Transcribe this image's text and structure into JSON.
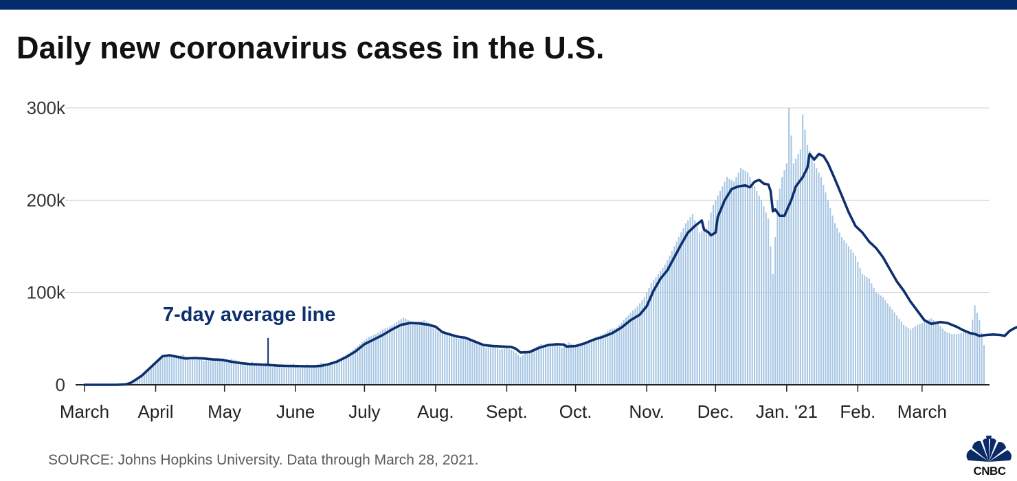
{
  "colors": {
    "top_bar": "#012b6b",
    "line": "#0d2f6e",
    "bars": "#a7c6e3",
    "grid": "#d0d0d0",
    "axis": "#222222",
    "annotation": "#0d2f6e"
  },
  "header": {
    "title": "Daily new coronavirus cases in the U.S."
  },
  "footer": {
    "source": "SOURCE: Johns Hopkins University. Data through March 28, 2021."
  },
  "logo": {
    "text": "CNBC",
    "icon": "nbc-peacock-icon"
  },
  "chart_data": {
    "type": "bar",
    "title": "Daily new coronavirus cases in the U.S.",
    "xlabel": "",
    "ylabel": "",
    "ylim": [
      0,
      300000
    ],
    "yticks": [
      {
        "value": 0,
        "label": "0"
      },
      {
        "value": 100000,
        "label": "100k"
      },
      {
        "value": 200000,
        "label": "200k"
      },
      {
        "value": 300000,
        "label": "300k"
      }
    ],
    "xticks": [
      {
        "day": 0,
        "label": "March"
      },
      {
        "day": 31,
        "label": "April"
      },
      {
        "day": 61,
        "label": "May"
      },
      {
        "day": 92,
        "label": "June"
      },
      {
        "day": 122,
        "label": "July"
      },
      {
        "day": 153,
        "label": "Aug."
      },
      {
        "day": 184,
        "label": "Sept."
      },
      {
        "day": 214,
        "label": "Oct."
      },
      {
        "day": 245,
        "label": "Nov."
      },
      {
        "day": 275,
        "label": "Dec."
      },
      {
        "day": 306,
        "label": "Jan. '21"
      },
      {
        "day": 337,
        "label": "Feb."
      },
      {
        "day": 365,
        "label": "March"
      }
    ],
    "x_range_days": [
      0,
      392
    ],
    "annotation": {
      "text": "7-day average line",
      "day": 80,
      "value": 21000
    },
    "series": [
      {
        "name": "Daily new cases",
        "kind": "bars",
        "points": [
          [
            0,
            0
          ],
          [
            10,
            100
          ],
          [
            18,
            400
          ],
          [
            20,
            1500
          ],
          [
            22,
            3000
          ],
          [
            25,
            9000
          ],
          [
            28,
            18000
          ],
          [
            31,
            26000
          ],
          [
            34,
            31000
          ],
          [
            37,
            32000
          ],
          [
            40,
            30000
          ],
          [
            43,
            33000
          ],
          [
            46,
            27000
          ],
          [
            49,
            30000
          ],
          [
            52,
            26000
          ],
          [
            55,
            28000
          ],
          [
            58,
            29000
          ],
          [
            61,
            25000
          ],
          [
            64,
            28000
          ],
          [
            67,
            26000
          ],
          [
            70,
            21000
          ],
          [
            73,
            25000
          ],
          [
            76,
            20000
          ],
          [
            79,
            24000
          ],
          [
            82,
            19000
          ],
          [
            85,
            22000
          ],
          [
            88,
            20000
          ],
          [
            91,
            23000
          ],
          [
            94,
            18000
          ],
          [
            97,
            22000
          ],
          [
            100,
            19000
          ],
          [
            103,
            24000
          ],
          [
            106,
            22000
          ],
          [
            109,
            26000
          ],
          [
            112,
            30000
          ],
          [
            115,
            34000
          ],
          [
            118,
            40000
          ],
          [
            121,
            46000
          ],
          [
            124,
            52000
          ],
          [
            127,
            55000
          ],
          [
            130,
            60000
          ],
          [
            133,
            63000
          ],
          [
            136,
            68000
          ],
          [
            139,
            73000
          ],
          [
            142,
            69000
          ],
          [
            145,
            67000
          ],
          [
            148,
            70000
          ],
          [
            151,
            66000
          ],
          [
            154,
            58000
          ],
          [
            157,
            55000
          ],
          [
            160,
            55000
          ],
          [
            163,
            50000
          ],
          [
            166,
            52000
          ],
          [
            169,
            47000
          ],
          [
            172,
            44000
          ],
          [
            175,
            40000
          ],
          [
            178,
            43000
          ],
          [
            181,
            38000
          ],
          [
            184,
            40000
          ],
          [
            187,
            37000
          ],
          [
            190,
            30000
          ],
          [
            193,
            36000
          ],
          [
            196,
            40000
          ],
          [
            199,
            44000
          ],
          [
            202,
            42000
          ],
          [
            205,
            45000
          ],
          [
            208,
            40000
          ],
          [
            211,
            46000
          ],
          [
            214,
            42000
          ],
          [
            217,
            45000
          ],
          [
            220,
            48000
          ],
          [
            223,
            52000
          ],
          [
            226,
            55000
          ],
          [
            229,
            60000
          ],
          [
            232,
            62000
          ],
          [
            235,
            70000
          ],
          [
            238,
            78000
          ],
          [
            241,
            85000
          ],
          [
            244,
            95000
          ],
          [
            247,
            110000
          ],
          [
            250,
            120000
          ],
          [
            253,
            130000
          ],
          [
            256,
            145000
          ],
          [
            259,
            160000
          ],
          [
            262,
            175000
          ],
          [
            265,
            185000
          ],
          [
            268,
            165000
          ],
          [
            271,
            170000
          ],
          [
            274,
            195000
          ],
          [
            277,
            210000
          ],
          [
            280,
            225000
          ],
          [
            283,
            220000
          ],
          [
            286,
            235000
          ],
          [
            289,
            230000
          ],
          [
            292,
            215000
          ],
          [
            295,
            200000
          ],
          [
            298,
            180000
          ],
          [
            300,
            120000
          ],
          [
            302,
            200000
          ],
          [
            304,
            225000
          ],
          [
            306,
            240000
          ],
          [
            307,
            300000
          ],
          [
            309,
            240000
          ],
          [
            312,
            255000
          ],
          [
            313,
            293000
          ],
          [
            315,
            260000
          ],
          [
            318,
            240000
          ],
          [
            321,
            225000
          ],
          [
            324,
            200000
          ],
          [
            327,
            175000
          ],
          [
            330,
            160000
          ],
          [
            333,
            150000
          ],
          [
            336,
            140000
          ],
          [
            339,
            120000
          ],
          [
            342,
            115000
          ],
          [
            345,
            100000
          ],
          [
            348,
            95000
          ],
          [
            351,
            85000
          ],
          [
            354,
            75000
          ],
          [
            357,
            65000
          ],
          [
            360,
            60000
          ],
          [
            363,
            65000
          ],
          [
            366,
            68000
          ],
          [
            369,
            72000
          ],
          [
            372,
            66000
          ],
          [
            375,
            58000
          ],
          [
            378,
            55000
          ],
          [
            381,
            55000
          ],
          [
            384,
            58000
          ],
          [
            386,
            55000
          ],
          [
            388,
            86000
          ],
          [
            390,
            70000
          ],
          [
            392,
            43000
          ]
        ]
      },
      {
        "name": "7-day average",
        "kind": "line",
        "points": [
          [
            0,
            0
          ],
          [
            14,
            0
          ],
          [
            18,
            500
          ],
          [
            20,
            2000
          ],
          [
            22,
            5000
          ],
          [
            25,
            10000
          ],
          [
            28,
            17000
          ],
          [
            31,
            24000
          ],
          [
            34,
            31000
          ],
          [
            37,
            32000
          ],
          [
            40,
            30500
          ],
          [
            44,
            28500
          ],
          [
            48,
            29000
          ],
          [
            52,
            28500
          ],
          [
            56,
            27500
          ],
          [
            60,
            27000
          ],
          [
            64,
            25000
          ],
          [
            68,
            23500
          ],
          [
            72,
            22500
          ],
          [
            76,
            22000
          ],
          [
            80,
            21500
          ],
          [
            84,
            20800
          ],
          [
            88,
            20500
          ],
          [
            92,
            20300
          ],
          [
            96,
            20100
          ],
          [
            100,
            20000
          ],
          [
            103,
            20500
          ],
          [
            106,
            22000
          ],
          [
            110,
            25000
          ],
          [
            114,
            30000
          ],
          [
            118,
            36000
          ],
          [
            122,
            44000
          ],
          [
            126,
            49000
          ],
          [
            130,
            54000
          ],
          [
            134,
            60000
          ],
          [
            138,
            65000
          ],
          [
            142,
            67000
          ],
          [
            146,
            66500
          ],
          [
            150,
            65000
          ],
          [
            153,
            63000
          ],
          [
            156,
            57000
          ],
          [
            160,
            54000
          ],
          [
            163,
            52000
          ],
          [
            166,
            51000
          ],
          [
            170,
            47000
          ],
          [
            174,
            43000
          ],
          [
            178,
            42000
          ],
          [
            182,
            41500
          ],
          [
            186,
            41000
          ],
          [
            188,
            39000
          ],
          [
            190,
            35000
          ],
          [
            194,
            35500
          ],
          [
            198,
            40000
          ],
          [
            202,
            43000
          ],
          [
            206,
            44000
          ],
          [
            209,
            43500
          ],
          [
            210,
            41500
          ],
          [
            214,
            42000
          ],
          [
            218,
            45000
          ],
          [
            222,
            49000
          ],
          [
            226,
            52000
          ],
          [
            230,
            56000
          ],
          [
            234,
            62000
          ],
          [
            238,
            70000
          ],
          [
            242,
            76000
          ],
          [
            245,
            85000
          ],
          [
            248,
            102000
          ],
          [
            251,
            115000
          ],
          [
            254,
            124000
          ],
          [
            257,
            138000
          ],
          [
            260,
            152000
          ],
          [
            263,
            165000
          ],
          [
            266,
            172000
          ],
          [
            268,
            176000
          ],
          [
            269,
            178000
          ],
          [
            270,
            168000
          ],
          [
            272,
            165000
          ],
          [
            273,
            162000
          ],
          [
            275,
            165000
          ],
          [
            276,
            182000
          ],
          [
            279,
            200000
          ],
          [
            282,
            212000
          ],
          [
            285,
            215000
          ],
          [
            288,
            216000
          ],
          [
            290,
            214000
          ],
          [
            292,
            220000
          ],
          [
            294,
            222000
          ],
          [
            296,
            218000
          ],
          [
            298,
            217000
          ],
          [
            299,
            210000
          ],
          [
            300,
            188000
          ],
          [
            301,
            190000
          ],
          [
            303,
            183000
          ],
          [
            305,
            183000
          ],
          [
            308,
            200000
          ],
          [
            310,
            215000
          ],
          [
            313,
            225000
          ],
          [
            315,
            235000
          ],
          [
            316,
            250000
          ],
          [
            318,
            244000
          ],
          [
            320,
            250000
          ],
          [
            322,
            248000
          ],
          [
            324,
            240000
          ],
          [
            327,
            223000
          ],
          [
            330,
            205000
          ],
          [
            333,
            187000
          ],
          [
            336,
            172000
          ],
          [
            339,
            165000
          ],
          [
            342,
            155000
          ],
          [
            345,
            148000
          ],
          [
            348,
            138000
          ],
          [
            351,
            125000
          ],
          [
            354,
            112000
          ],
          [
            357,
            102000
          ],
          [
            360,
            90000
          ],
          [
            363,
            80000
          ],
          [
            366,
            70000
          ],
          [
            369,
            66000
          ],
          [
            373,
            68000
          ],
          [
            376,
            67000
          ],
          [
            380,
            63000
          ],
          [
            383,
            59000
          ],
          [
            386,
            56000
          ],
          [
            388,
            55000
          ],
          [
            390,
            53000
          ],
          [
            393,
            54000
          ],
          [
            396,
            54500
          ],
          [
            399,
            54000
          ],
          [
            401,
            53000
          ],
          [
            403,
            58000
          ],
          [
            405,
            61000
          ],
          [
            407,
            63000
          ]
        ]
      }
    ]
  }
}
